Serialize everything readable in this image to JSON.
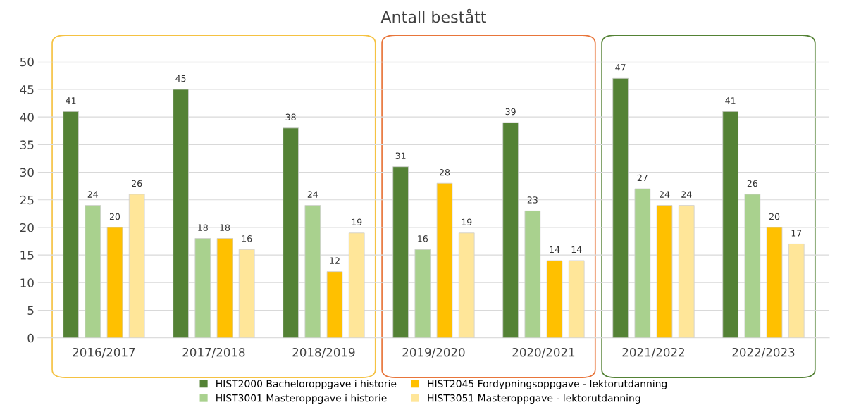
{
  "chart_data": {
    "type": "bar",
    "title": "Antall bestått",
    "categories": [
      "2016/2017",
      "2017/2018",
      "2018/2019",
      "2019/2020",
      "2020/2021",
      "2021/2022",
      "2022/2023"
    ],
    "series": [
      {
        "name": "HIST2000 Bacheloroppgave i historie",
        "color": "#548235",
        "values": [
          41,
          45,
          38,
          31,
          39,
          47,
          41
        ]
      },
      {
        "name": "HIST3001 Masteroppgave i historie",
        "color": "#a9d18e",
        "values": [
          24,
          18,
          24,
          16,
          23,
          27,
          26
        ]
      },
      {
        "name": "HIST2045 Fordypningsoppgave - lektorutdanning",
        "color": "#ffc000",
        "values": [
          20,
          18,
          12,
          28,
          14,
          24,
          20
        ]
      },
      {
        "name": "HIST3051 Masteroppgave - lektorutdanning",
        "color": "#ffe699",
        "values": [
          26,
          16,
          19,
          19,
          14,
          24,
          17
        ]
      }
    ],
    "ylim": [
      0,
      50
    ],
    "yticks": [
      0,
      5,
      10,
      15,
      20,
      25,
      30,
      35,
      40,
      45,
      50
    ],
    "grid": "y",
    "legend": "bottom",
    "data_labels": true
  }
}
